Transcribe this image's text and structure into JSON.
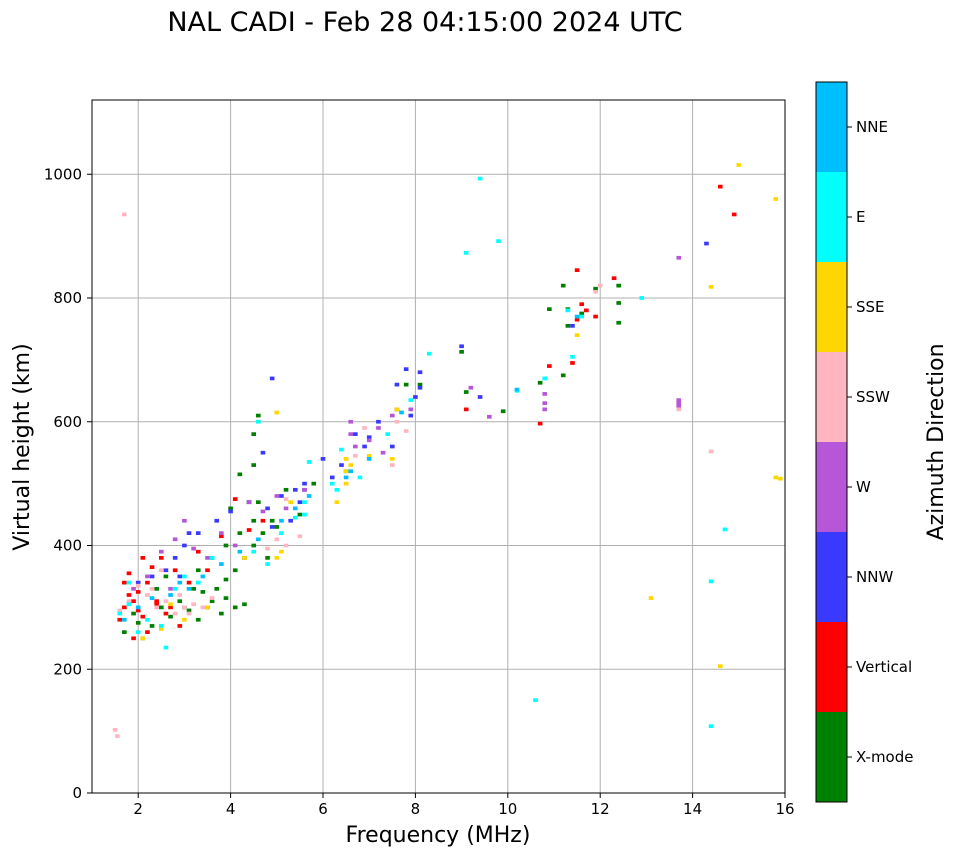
{
  "chart_data": {
    "type": "scatter",
    "title": "NAL CADI - Feb 28 04:15:00 2024 UTC",
    "xlabel": "Frequency (MHz)",
    "ylabel": "Virtual height (km)",
    "xlim": [
      1,
      16
    ],
    "ylim": [
      0,
      1120
    ],
    "xticks": [
      2,
      4,
      6,
      8,
      10,
      12,
      14,
      16
    ],
    "yticks": [
      0,
      200,
      400,
      600,
      800,
      1000
    ],
    "grid": true,
    "colorbar": {
      "title": "Azimuth Direction",
      "categories": [
        {
          "name": "X-mode",
          "color": "#008000"
        },
        {
          "name": "Vertical",
          "color": "#ff0000"
        },
        {
          "name": "NNW",
          "color": "#3a3aff"
        },
        {
          "name": "W",
          "color": "#b557d8"
        },
        {
          "name": "SSW",
          "color": "#ffb6c1"
        },
        {
          "name": "SSE",
          "color": "#ffd700"
        },
        {
          "name": "E",
          "color": "#00ffff"
        },
        {
          "name": "NNE",
          "color": "#00bfff"
        }
      ]
    },
    "point_width_mhz": 0.1,
    "point_height_km": 6,
    "series": [
      {
        "name": "X-mode",
        "points": [
          [
            1.7,
            260
          ],
          [
            1.9,
            290
          ],
          [
            2.1,
            250
          ],
          [
            2.3,
            270
          ],
          [
            2.5,
            300
          ],
          [
            2.7,
            285
          ],
          [
            2.9,
            310
          ],
          [
            3.1,
            295
          ],
          [
            3.3,
            280
          ],
          [
            3.5,
            300
          ],
          [
            3.7,
            330
          ],
          [
            3.9,
            345
          ],
          [
            4.1,
            360
          ],
          [
            4.3,
            380
          ],
          [
            4.5,
            400
          ],
          [
            4.7,
            420
          ],
          [
            4.9,
            440
          ],
          [
            3.3,
            360
          ],
          [
            3.6,
            380
          ],
          [
            3.9,
            400
          ],
          [
            4.2,
            420
          ],
          [
            4.5,
            440
          ],
          [
            4.0,
            460
          ],
          [
            4.4,
            470
          ],
          [
            4.2,
            515
          ],
          [
            4.5,
            530
          ],
          [
            4.6,
            610
          ],
          [
            4.5,
            580
          ],
          [
            3.2,
            330
          ],
          [
            3.0,
            300
          ],
          [
            4.8,
            380
          ],
          [
            5.2,
            490
          ],
          [
            5.5,
            450
          ],
          [
            4.1,
            300
          ],
          [
            3.6,
            310
          ],
          [
            3.8,
            290
          ],
          [
            4.3,
            305
          ],
          [
            9.0,
            713
          ],
          [
            9.9,
            617
          ],
          [
            9.1,
            648
          ],
          [
            10.7,
            663
          ],
          [
            11.2,
            675
          ],
          [
            11.3,
            755
          ],
          [
            11.6,
            775
          ],
          [
            11.2,
            820
          ],
          [
            11.9,
            815
          ],
          [
            12.4,
            820
          ],
          [
            12.4,
            792
          ],
          [
            12.4,
            760
          ],
          [
            10.9,
            782
          ],
          [
            11.3,
            782
          ],
          [
            6.5,
            520
          ],
          [
            7.8,
            660
          ],
          [
            8.1,
            660
          ],
          [
            5.8,
            500
          ],
          [
            2.4,
            330
          ],
          [
            2.6,
            350
          ],
          [
            3.4,
            325
          ],
          [
            4.6,
            470
          ],
          [
            5.0,
            430
          ],
          [
            2.0,
            275
          ],
          [
            3.9,
            315
          ]
        ]
      },
      {
        "name": "Vertical",
        "points": [
          [
            1.6,
            280
          ],
          [
            1.7,
            300
          ],
          [
            1.8,
            320
          ],
          [
            1.9,
            310
          ],
          [
            2.0,
            295
          ],
          [
            2.1,
            285
          ],
          [
            2.2,
            340
          ],
          [
            2.3,
            365
          ],
          [
            2.4,
            310
          ],
          [
            2.5,
            380
          ],
          [
            2.7,
            300
          ],
          [
            2.9,
            270
          ],
          [
            1.9,
            250
          ],
          [
            2.2,
            260
          ],
          [
            2.6,
            290
          ],
          [
            3.1,
            340
          ],
          [
            3.5,
            360
          ],
          [
            3.8,
            415
          ],
          [
            4.1,
            475
          ],
          [
            4.4,
            425
          ],
          [
            4.7,
            440
          ],
          [
            2.4,
            305
          ],
          [
            1.8,
            355
          ],
          [
            2.0,
            325
          ],
          [
            10.7,
            597
          ],
          [
            9.1,
            620
          ],
          [
            10.9,
            690
          ],
          [
            11.4,
            695
          ],
          [
            11.5,
            765
          ],
          [
            11.5,
            845
          ],
          [
            11.6,
            790
          ],
          [
            11.7,
            780
          ],
          [
            12.3,
            832
          ],
          [
            11.9,
            770
          ],
          [
            14.6,
            980
          ],
          [
            14.9,
            935
          ],
          [
            2.8,
            360
          ],
          [
            3.3,
            390
          ],
          [
            2.1,
            380
          ],
          [
            1.7,
            340
          ]
        ]
      },
      {
        "name": "NNW",
        "points": [
          [
            2.0,
            340
          ],
          [
            2.3,
            350
          ],
          [
            2.6,
            360
          ],
          [
            2.8,
            380
          ],
          [
            3.0,
            400
          ],
          [
            3.3,
            420
          ],
          [
            3.7,
            440
          ],
          [
            4.0,
            455
          ],
          [
            4.4,
            470
          ],
          [
            4.8,
            460
          ],
          [
            5.1,
            480
          ],
          [
            5.4,
            490
          ],
          [
            5.6,
            500
          ],
          [
            5.5,
            470
          ],
          [
            5.3,
            440
          ],
          [
            4.9,
            430
          ],
          [
            6.7,
            580
          ],
          [
            6.9,
            560
          ],
          [
            7.0,
            575
          ],
          [
            7.2,
            600
          ],
          [
            7.6,
            620
          ],
          [
            7.6,
            660
          ],
          [
            7.8,
            685
          ],
          [
            8.0,
            640
          ],
          [
            8.1,
            655
          ],
          [
            8.1,
            680
          ],
          [
            7.9,
            610
          ],
          [
            7.5,
            560
          ],
          [
            4.7,
            550
          ],
          [
            4.9,
            670
          ],
          [
            6.4,
            530
          ],
          [
            6.2,
            510
          ],
          [
            9.4,
            640
          ],
          [
            9.0,
            722
          ],
          [
            14.3,
            888
          ],
          [
            11.4,
            755
          ],
          [
            3.1,
            420
          ],
          [
            2.9,
            350
          ],
          [
            5.6,
            490
          ],
          [
            6.0,
            540
          ]
        ]
      },
      {
        "name": "W",
        "points": [
          [
            1.9,
            330
          ],
          [
            2.2,
            350
          ],
          [
            2.5,
            390
          ],
          [
            2.8,
            410
          ],
          [
            3.0,
            440
          ],
          [
            3.2,
            395
          ],
          [
            3.5,
            380
          ],
          [
            3.8,
            420
          ],
          [
            4.1,
            400
          ],
          [
            4.4,
            470
          ],
          [
            4.7,
            455
          ],
          [
            5.0,
            480
          ],
          [
            5.2,
            460
          ],
          [
            5.6,
            490
          ],
          [
            6.6,
            600
          ],
          [
            6.6,
            580
          ],
          [
            6.7,
            560
          ],
          [
            7.0,
            570
          ],
          [
            7.2,
            590
          ],
          [
            7.3,
            550
          ],
          [
            7.5,
            610
          ],
          [
            7.9,
            620
          ],
          [
            9.2,
            655
          ],
          [
            10.8,
            645
          ],
          [
            10.8,
            630
          ],
          [
            10.8,
            620
          ],
          [
            13.7,
            630
          ],
          [
            13.7,
            625
          ],
          [
            13.7,
            635
          ],
          [
            13.7,
            865
          ],
          [
            9.6,
            608
          ],
          [
            2.7,
            330
          ]
        ]
      },
      {
        "name": "SSW",
        "points": [
          [
            1.5,
            102
          ],
          [
            1.55,
            92
          ],
          [
            1.7,
            935
          ],
          [
            1.6,
            295
          ],
          [
            1.8,
            310
          ],
          [
            2.0,
            335
          ],
          [
            2.2,
            320
          ],
          [
            2.4,
            300
          ],
          [
            2.6,
            310
          ],
          [
            2.8,
            290
          ],
          [
            3.0,
            300
          ],
          [
            3.2,
            305
          ],
          [
            2.5,
            360
          ],
          [
            2.3,
            330
          ],
          [
            2.9,
            320
          ],
          [
            3.1,
            290
          ],
          [
            3.4,
            300
          ],
          [
            3.6,
            315
          ],
          [
            4.8,
            395
          ],
          [
            5.0,
            410
          ],
          [
            5.2,
            400
          ],
          [
            5.5,
            415
          ],
          [
            5.2,
            475
          ],
          [
            6.5,
            540
          ],
          [
            6.7,
            545
          ],
          [
            6.9,
            590
          ],
          [
            7.5,
            530
          ],
          [
            7.8,
            585
          ],
          [
            7.6,
            600
          ],
          [
            14.4,
            552
          ],
          [
            11.9,
            810
          ],
          [
            13.7,
            620
          ],
          [
            12.0,
            820
          ]
        ]
      },
      {
        "name": "SSE",
        "points": [
          [
            2.1,
            250
          ],
          [
            2.5,
            265
          ],
          [
            3.0,
            280
          ],
          [
            3.5,
            300
          ],
          [
            5.1,
            390
          ],
          [
            5.0,
            380
          ],
          [
            5.3,
            470
          ],
          [
            5.0,
            615
          ],
          [
            6.3,
            470
          ],
          [
            6.5,
            500
          ],
          [
            6.5,
            520
          ],
          [
            6.5,
            540
          ],
          [
            6.6,
            530
          ],
          [
            7.0,
            545
          ],
          [
            7.5,
            540
          ],
          [
            7.6,
            620
          ],
          [
            13.1,
            315
          ],
          [
            14.6,
            205
          ],
          [
            14.4,
            818
          ],
          [
            15.0,
            1015
          ],
          [
            15.8,
            960
          ],
          [
            15.8,
            510
          ],
          [
            15.9,
            508
          ],
          [
            11.5,
            740
          ],
          [
            4.3,
            380
          ],
          [
            2.7,
            305
          ]
        ]
      },
      {
        "name": "E",
        "points": [
          [
            1.6,
            290
          ],
          [
            1.8,
            305
          ],
          [
            2.0,
            260
          ],
          [
            2.2,
            280
          ],
          [
            2.5,
            270
          ],
          [
            2.8,
            330
          ],
          [
            3.0,
            350
          ],
          [
            3.3,
            340
          ],
          [
            3.6,
            380
          ],
          [
            4.5,
            390
          ],
          [
            4.8,
            370
          ],
          [
            5.1,
            420
          ],
          [
            5.4,
            445
          ],
          [
            5.6,
            470
          ],
          [
            5.7,
            535
          ],
          [
            5.6,
            450
          ],
          [
            6.3,
            490
          ],
          [
            6.8,
            510
          ],
          [
            7.4,
            580
          ],
          [
            7.9,
            635
          ],
          [
            8.3,
            710
          ],
          [
            9.1,
            873
          ],
          [
            9.4,
            993
          ],
          [
            9.8,
            892
          ],
          [
            10.2,
            650
          ],
          [
            10.6,
            150
          ],
          [
            10.8,
            670
          ],
          [
            11.3,
            780
          ],
          [
            11.4,
            705
          ],
          [
            11.6,
            770
          ],
          [
            12.9,
            800
          ],
          [
            14.4,
            108
          ],
          [
            14.4,
            342
          ],
          [
            14.7,
            426
          ],
          [
            6.4,
            555
          ],
          [
            2.6,
            235
          ],
          [
            1.8,
            340
          ],
          [
            4.6,
            600
          ],
          [
            6.2,
            500
          ]
        ]
      },
      {
        "name": "NNE",
        "points": [
          [
            1.7,
            280
          ],
          [
            2.0,
            300
          ],
          [
            2.3,
            315
          ],
          [
            2.7,
            320
          ],
          [
            3.1,
            330
          ],
          [
            3.4,
            350
          ],
          [
            3.8,
            370
          ],
          [
            4.2,
            390
          ],
          [
            4.6,
            410
          ],
          [
            5.1,
            440
          ],
          [
            5.4,
            460
          ],
          [
            5.7,
            480
          ],
          [
            6.5,
            510
          ],
          [
            7.0,
            540
          ],
          [
            7.7,
            615
          ],
          [
            11.5,
            770
          ],
          [
            10.2,
            652
          ],
          [
            6.6,
            520
          ],
          [
            2.9,
            340
          ]
        ]
      }
    ]
  }
}
